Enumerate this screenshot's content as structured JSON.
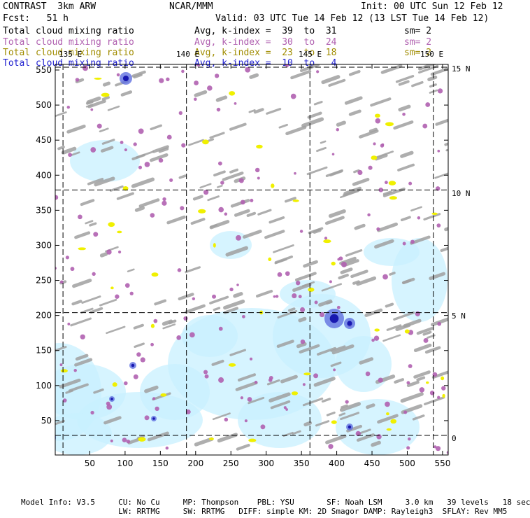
{
  "header": {
    "title_left": "CONTRAST  3km ARW",
    "title_center": "NCAR/MMM",
    "init": "Init: 00 UTC Sun 12 Feb 12",
    "fcst": "Fcst:   51 h",
    "valid": "Valid: 03 UTC Tue 14 Feb 12 (13 LST Tue 14 Feb 12)"
  },
  "fields": [
    {
      "name": "Total cloud mixing ratio",
      "avg": "Avg, k-index =  39  to  31",
      "sm": "sm= 2",
      "color": "#000000"
    },
    {
      "name": "Total cloud mixing ratio",
      "avg": "Avg, k-index =  30  to  24",
      "sm": "sm= 2",
      "color": "#b060b0"
    },
    {
      "name": "Total cloud mixing ratio",
      "avg": "Avg, k-index =  23  to  18",
      "sm": "sm= 2",
      "color": "#a08c00"
    },
    {
      "name": "Total cloud mixing ratio",
      "avg": "Avg, k-index =  10  to   4",
      "sm": "",
      "color": "#2020d0"
    }
  ],
  "lon_labels": [
    "135 E",
    "140 E",
    "145 E",
    "150 E"
  ],
  "lat_labels": [
    "15 N",
    "10 N",
    "5 N",
    "0"
  ],
  "chart_data": {
    "type": "heatmap",
    "title": "Total cloud mixing ratio",
    "x_ticks": [
      50,
      100,
      150,
      200,
      250,
      300,
      350,
      400,
      450,
      500,
      550
    ],
    "y_ticks": [
      50,
      100,
      150,
      200,
      250,
      300,
      350,
      400,
      450,
      500,
      550
    ],
    "xlim": [
      1,
      558
    ],
    "ylim": [
      1,
      558
    ],
    "grid": true,
    "lon_lines": [
      {
        "label": "135 E",
        "x": 12
      },
      {
        "label": "140 E",
        "x": 187
      },
      {
        "label": "145 E",
        "x": 362
      },
      {
        "label": "150 E",
        "x": 537
      }
    ],
    "lat_lines": [
      {
        "label": "15 N",
        "y": 554
      },
      {
        "label": "10 N",
        "y": 379
      },
      {
        "label": "5 N",
        "y": 204
      },
      {
        "label": "0",
        "y": 29
      }
    ],
    "series": [
      {
        "name": "k-index 39 to 31",
        "color": "#a0a0a0"
      },
      {
        "name": "k-index 30 to 24",
        "color": "#b060b0"
      },
      {
        "name": "k-index 23 to 18",
        "color": "#f0f000"
      },
      {
        "name": "k-index 10 to 4",
        "color": "#c8f0ff"
      }
    ]
  },
  "footer": {
    "line1": "Model Info: V3.5     CU: No Cu     MP: Thompson    PBL: YSU       SF: Noah LSM     3.0 km   39 levels   18 sec",
    "line2": "                     LW: RRTMG     SW: RRTMG   DIFF: simple KM: 2D Smagor DAMP: Rayleigh3  SFLAY: Rev MM5"
  }
}
